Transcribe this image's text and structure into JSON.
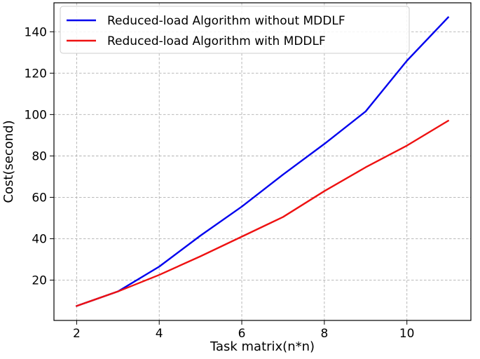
{
  "chart_data": {
    "type": "line",
    "xlabel": "Task matrix(n*n)",
    "ylabel": "Cost(second)",
    "x": [
      2,
      3,
      4,
      5,
      6,
      7,
      8,
      9,
      10,
      11
    ],
    "xlim": [
      1.45,
      11.55
    ],
    "ylim": [
      0.5,
      154
    ],
    "x_ticks": [
      2,
      4,
      6,
      8,
      10
    ],
    "y_ticks": [
      20,
      40,
      60,
      80,
      100,
      120,
      140
    ],
    "grid": true,
    "legend_position": "top-left",
    "series": [
      {
        "name": "Reduced-load Algorithm without MDDLF",
        "color": "#0000ee",
        "values": [
          7.5,
          14.5,
          26.5,
          41.5,
          55.5,
          71.0,
          85.8,
          101.5,
          126.0,
          147.0
        ]
      },
      {
        "name": "Reduced-load Algorithm with MDDLF",
        "color": "#ee1111",
        "values": [
          7.5,
          14.5,
          22.5,
          31.5,
          41.0,
          50.5,
          63.0,
          74.5,
          85.0,
          97.0
        ]
      }
    ]
  }
}
